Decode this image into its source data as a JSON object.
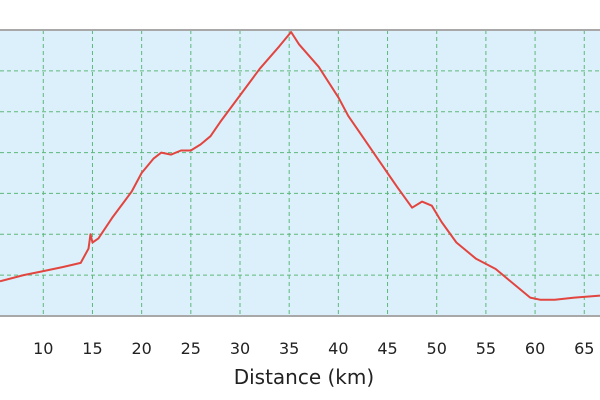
{
  "chart_data": {
    "type": "line",
    "xlabel": "Distance (km)",
    "ylabel": "",
    "x_ticks": [
      "10",
      "15",
      "20",
      "25",
      "30",
      "35",
      "40",
      "45",
      "50",
      "55",
      "60",
      "65"
    ],
    "xlim": [
      5.6,
      66.6
    ],
    "ylim": [
      0,
      7
    ],
    "grid": true,
    "series": [
      {
        "x": [
          5.6,
          8,
          10,
          12,
          13.8,
          14.6,
          14.8,
          15,
          15.6,
          17,
          19,
          20,
          21.2,
          22,
          23,
          24,
          25,
          26,
          27,
          28,
          30,
          32,
          34,
          35.2,
          36,
          38,
          40,
          41,
          43,
          45,
          46,
          47.5,
          48.5,
          49.5,
          50.5,
          52,
          54,
          56,
          58,
          59.5,
          60.5,
          62,
          64,
          66.6
        ],
        "y": [
          0.85,
          1.0,
          1.1,
          1.2,
          1.3,
          1.65,
          2.0,
          1.8,
          1.9,
          2.4,
          3.05,
          3.5,
          3.85,
          4.0,
          3.95,
          4.05,
          4.05,
          4.2,
          4.4,
          4.75,
          5.4,
          6.05,
          6.6,
          6.95,
          6.65,
          6.1,
          5.35,
          4.9,
          4.2,
          3.5,
          3.15,
          2.65,
          2.8,
          2.7,
          2.3,
          1.8,
          1.4,
          1.15,
          0.75,
          0.45,
          0.4,
          0.4,
          0.45,
          0.5
        ]
      }
    ]
  },
  "colors": {
    "plot_background": "#dcf0fb",
    "grid_line": "#5cb87a",
    "series_line": "#e2453f",
    "axis_frame": "#a8a8a8"
  }
}
